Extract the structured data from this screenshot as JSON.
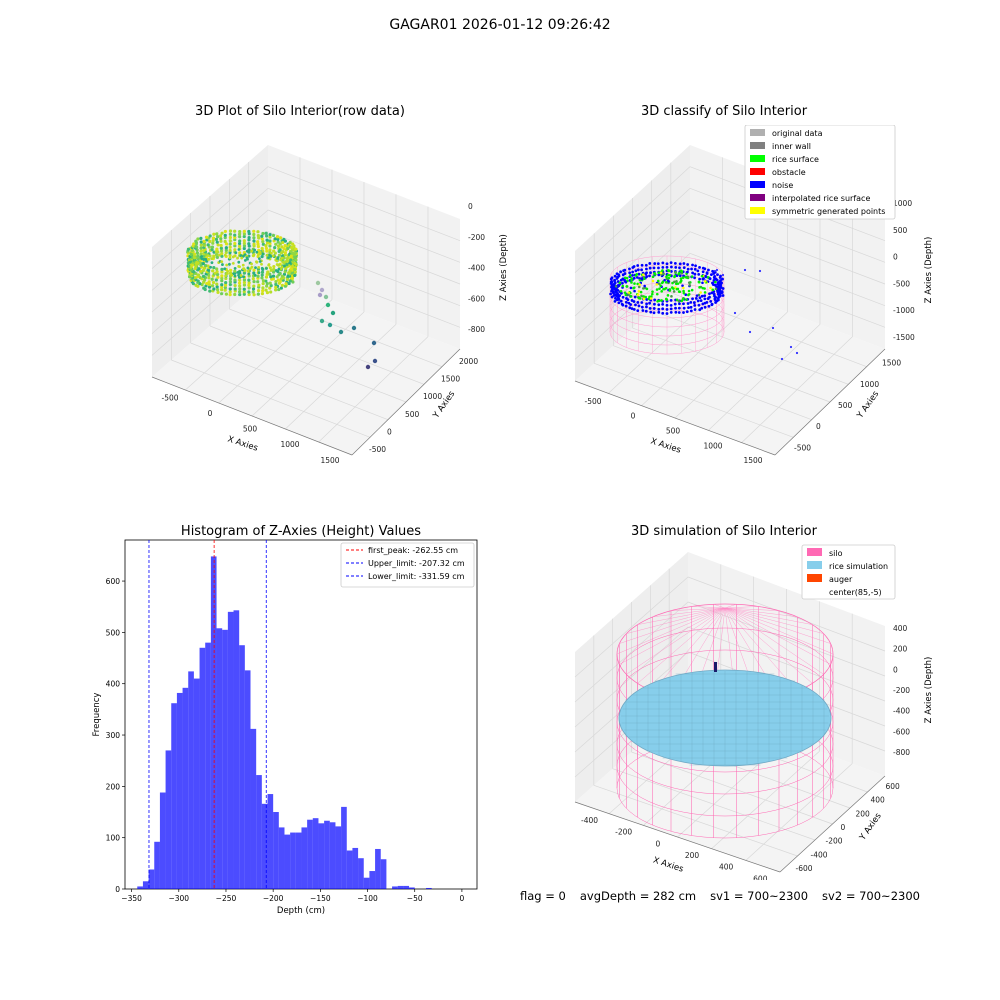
{
  "suptitle": "GAGAR01 2026-01-12 09:26:42",
  "panels": {
    "raw": {
      "title": "3D Plot of Silo Interior(row data)",
      "x_label": "X Axies",
      "y_label": "Y Axies",
      "z_label": "Z Axies (Depth)",
      "x_ticks": [
        "-500",
        "0",
        "500",
        "1000",
        "1500"
      ],
      "y_ticks": [
        "-500",
        "0",
        "500",
        "1000",
        "1500",
        "2000"
      ],
      "z_ticks": [
        "0",
        "-200",
        "-400",
        "-600",
        "-800"
      ]
    },
    "classify": {
      "title": "3D classify of Silo Interior",
      "x_label": "X Axies",
      "y_label": "Y Axies",
      "z_label": "Z Axies (Depth)",
      "x_ticks": [
        "-500",
        "0",
        "500",
        "1000",
        "1500"
      ],
      "y_ticks": [
        "-500",
        "0",
        "500",
        "1000",
        "1500"
      ],
      "z_ticks": [
        "1000",
        "500",
        "0",
        "-500",
        "-1000",
        "-1500"
      ],
      "legend": [
        {
          "label": "original data",
          "color": "#b0b0b0"
        },
        {
          "label": "inner wall",
          "color": "#808080"
        },
        {
          "label": "rice surface",
          "color": "#00ff00"
        },
        {
          "label": "obstacle",
          "color": "#ff0000"
        },
        {
          "label": "noise",
          "color": "#0000ff"
        },
        {
          "label": "interpolated rice surface",
          "color": "#800080"
        },
        {
          "label": "symmetric generated points",
          "color": "#ffff00"
        }
      ]
    },
    "simulation": {
      "title": "3D simulation of Silo Interior",
      "x_label": "X Axies",
      "y_label": "Y Axies",
      "z_label": "Z Axies (Depth)",
      "x_ticks": [
        "-400",
        "-200",
        "0",
        "200",
        "400",
        "600"
      ],
      "y_ticks": [
        "-600",
        "-400",
        "-200",
        "0",
        "200",
        "400",
        "600"
      ],
      "z_ticks": [
        "400",
        "200",
        "0",
        "-200",
        "-400",
        "-600",
        "-800"
      ],
      "legend": [
        {
          "label": "silo",
          "color": "#ff69b4"
        },
        {
          "label": "rice simulation",
          "color": "#87ceeb"
        },
        {
          "label": "auger",
          "color": "#ff4500"
        },
        {
          "label": "center(85,-5)",
          "color": ""
        }
      ]
    }
  },
  "chart_data": {
    "type": "bar",
    "title": "Histogram of Z-Axies (Height) Values",
    "xlabel": "Depth (cm)",
    "ylabel": "Frequency",
    "xlim": [
      -357,
      16
    ],
    "ylim": [
      0,
      680
    ],
    "x_ticks": [
      -350,
      -300,
      -250,
      -200,
      -150,
      -100,
      -50,
      0
    ],
    "y_ticks": [
      0,
      100,
      200,
      300,
      400,
      500,
      600
    ],
    "bar_color": "#0000ff",
    "bin_width": 6,
    "bins": [
      {
        "x0": -344,
        "v": 5
      },
      {
        "x0": -338,
        "v": 15
      },
      {
        "x0": -332,
        "v": 38
      },
      {
        "x0": -326,
        "v": 92
      },
      {
        "x0": -320,
        "v": 188
      },
      {
        "x0": -314,
        "v": 270
      },
      {
        "x0": -308,
        "v": 362
      },
      {
        "x0": -302,
        "v": 382
      },
      {
        "x0": -296,
        "v": 392
      },
      {
        "x0": -290,
        "v": 424
      },
      {
        "x0": -284,
        "v": 410
      },
      {
        "x0": -278,
        "v": 470
      },
      {
        "x0": -272,
        "v": 480
      },
      {
        "x0": -266,
        "v": 648
      },
      {
        "x0": -260,
        "v": 508
      },
      {
        "x0": -254,
        "v": 505
      },
      {
        "x0": -248,
        "v": 540
      },
      {
        "x0": -242,
        "v": 543
      },
      {
        "x0": -236,
        "v": 475
      },
      {
        "x0": -230,
        "v": 426
      },
      {
        "x0": -224,
        "v": 312
      },
      {
        "x0": -218,
        "v": 222
      },
      {
        "x0": -212,
        "v": 166
      },
      {
        "x0": -206,
        "v": 185
      },
      {
        "x0": -200,
        "v": 150
      },
      {
        "x0": -194,
        "v": 120
      },
      {
        "x0": -188,
        "v": 106
      },
      {
        "x0": -182,
        "v": 110
      },
      {
        "x0": -176,
        "v": 110
      },
      {
        "x0": -170,
        "v": 120
      },
      {
        "x0": -164,
        "v": 135
      },
      {
        "x0": -158,
        "v": 138
      },
      {
        "x0": -152,
        "v": 128
      },
      {
        "x0": -146,
        "v": 133
      },
      {
        "x0": -140,
        "v": 130
      },
      {
        "x0": -134,
        "v": 122
      },
      {
        "x0": -128,
        "v": 160
      },
      {
        "x0": -122,
        "v": 75
      },
      {
        "x0": -116,
        "v": 80
      },
      {
        "x0": -110,
        "v": 60
      },
      {
        "x0": -104,
        "v": 22
      },
      {
        "x0": -98,
        "v": 35
      },
      {
        "x0": -92,
        "v": 78
      },
      {
        "x0": -86,
        "v": 58
      },
      {
        "x0": -80,
        "v": 0
      },
      {
        "x0": -74,
        "v": 5
      },
      {
        "x0": -68,
        "v": 6
      },
      {
        "x0": -62,
        "v": 6
      },
      {
        "x0": -56,
        "v": 3
      },
      {
        "x0": -50,
        "v": 0
      },
      {
        "x0": -44,
        "v": 0
      },
      {
        "x0": -38,
        "v": 2
      }
    ],
    "lines": [
      {
        "label": "first_peak: -262.55 cm",
        "x": -262.55,
        "color": "#ff0000"
      },
      {
        "label": "Upper_limit: -207.32 cm",
        "x": -207.32,
        "color": "#0000ff"
      },
      {
        "label": "Lower_limit: -331.59 cm",
        "x": -331.59,
        "color": "#0000ff"
      }
    ]
  },
  "status": {
    "flag": "flag = 0",
    "avg_depth": "avgDepth = 282 cm",
    "sv1": "sv1 = 700~2300",
    "sv2": "sv2 = 700~2300"
  }
}
